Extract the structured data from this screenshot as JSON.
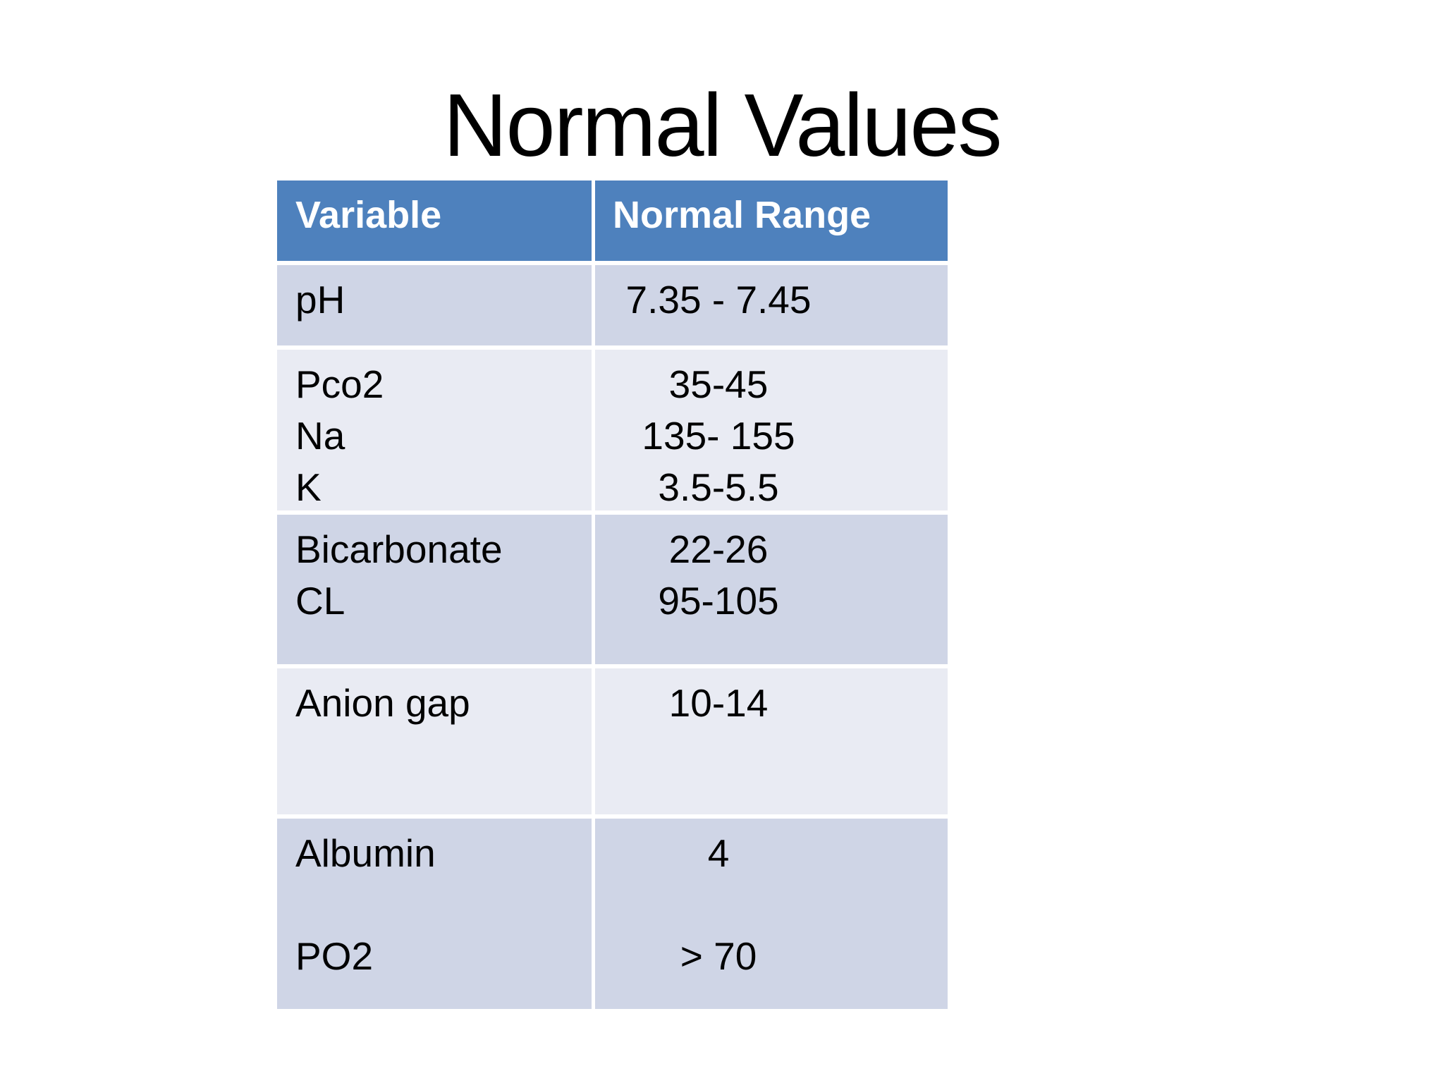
{
  "slide": {
    "title": "Normal Values"
  },
  "colors": {
    "header_bg": "#4E81BD",
    "header_text": "#FFFFFF",
    "row_dark_bg": "#CFD5E6",
    "row_light_bg": "#E9EBF3",
    "body_text": "#000000",
    "background": "#FFFFFF"
  },
  "table": {
    "headers": [
      "Variable",
      "Normal Range"
    ],
    "rows": [
      {
        "variable_lines": [
          "pH"
        ],
        "range_lines": [
          "7.35 - 7.45"
        ]
      },
      {
        "variable_lines": [
          "Pco2",
          "Na",
          "K"
        ],
        "range_lines": [
          "35-45",
          "135- 155",
          "3.5-5.5"
        ]
      },
      {
        "variable_lines": [
          "Bicarbonate",
          "CL"
        ],
        "range_lines": [
          "22-26",
          "95-105"
        ]
      },
      {
        "variable_lines": [
          "Anion gap"
        ],
        "range_lines": [
          "10-14"
        ]
      },
      {
        "variable_lines": [
          "Albumin",
          "",
          "PO2"
        ],
        "range_lines": [
          "4",
          "",
          "> 70"
        ]
      }
    ]
  }
}
